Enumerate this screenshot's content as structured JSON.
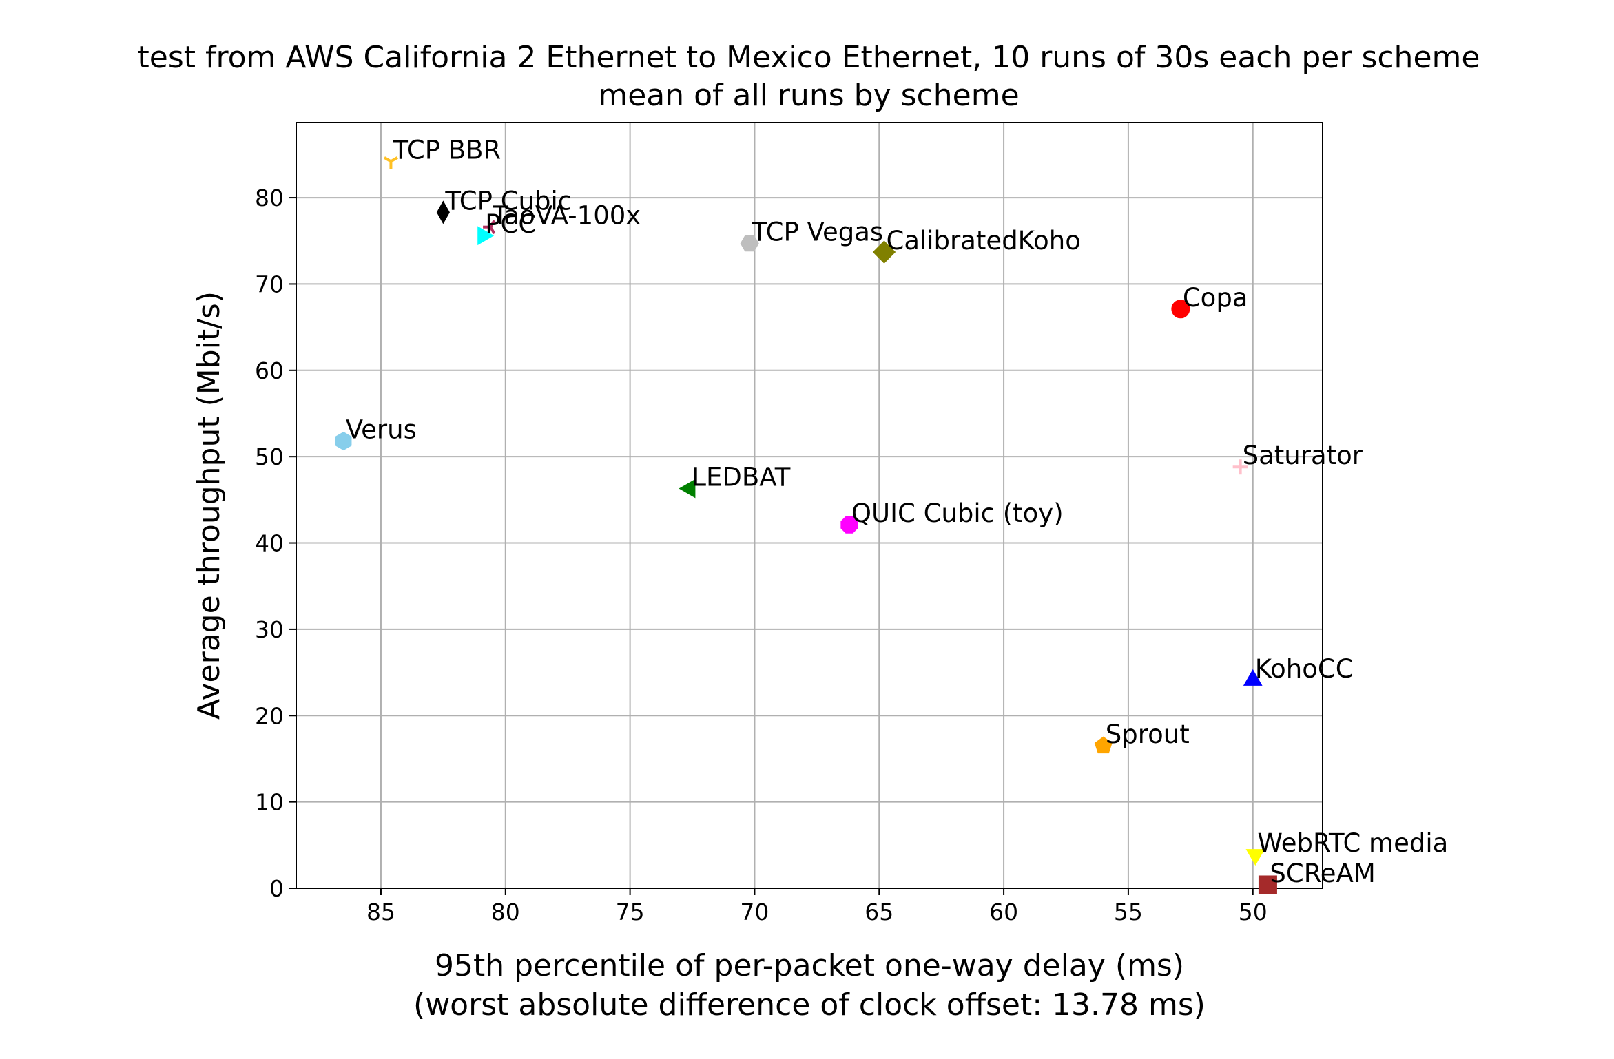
{
  "chart_data": {
    "type": "scatter",
    "title": "test from AWS California 2 Ethernet to Mexico Ethernet, 10 runs of 30s each per scheme",
    "subtitle": "mean of all runs by scheme",
    "xlabel": "95th percentile of per-packet one-way delay (ms)",
    "xlabel2": "(worst absolute difference of clock offset: 13.78 ms)",
    "ylabel": "Average throughput (Mbit/s)",
    "x_inverted": true,
    "xlim": [
      88.4,
      47.2
    ],
    "ylim": [
      0,
      88.7
    ],
    "xticks": [
      85,
      80,
      75,
      70,
      65,
      60,
      55,
      50
    ],
    "yticks": [
      0,
      10,
      20,
      30,
      40,
      50,
      60,
      70,
      80
    ],
    "grid": true,
    "points": [
      {
        "name": "TCP BBR",
        "x": 84.6,
        "y": 84.2,
        "marker": "tri-down",
        "color": "#FFC125"
      },
      {
        "name": "TCP Cubic",
        "x": 82.5,
        "y": 78.3,
        "marker": "thin-diamond",
        "color": "#000000"
      },
      {
        "name": "TaoVA-100x",
        "x": 80.6,
        "y": 76.6,
        "marker": "tri-left",
        "color": "#B03060"
      },
      {
        "name": "PCC",
        "x": 80.9,
        "y": 75.6,
        "marker": "triangle-right",
        "color": "#00FFFF"
      },
      {
        "name": "TCP Vegas",
        "x": 70.2,
        "y": 74.7,
        "marker": "hexagon2",
        "color": "#BEBEBE"
      },
      {
        "name": "CalibratedKoho",
        "x": 64.8,
        "y": 73.7,
        "marker": "diamond",
        "color": "#808000"
      },
      {
        "name": "Copa",
        "x": 52.9,
        "y": 67.1,
        "marker": "circle",
        "color": "#FF0000"
      },
      {
        "name": "Verus",
        "x": 86.5,
        "y": 51.8,
        "marker": "hexagon",
        "color": "#87CEEB"
      },
      {
        "name": "Saturator",
        "x": 50.5,
        "y": 48.8,
        "marker": "plus",
        "color": "#FFC0CB"
      },
      {
        "name": "LEDBAT",
        "x": 72.6,
        "y": 46.3,
        "marker": "triangle-left",
        "color": "#008000"
      },
      {
        "name": "QUIC Cubic (toy)",
        "x": 66.2,
        "y": 42.1,
        "marker": "octagon",
        "color": "#FF00FF"
      },
      {
        "name": "KohoCC",
        "x": 50.0,
        "y": 24.1,
        "marker": "triangle-up",
        "color": "#0000FF"
      },
      {
        "name": "Sprout",
        "x": 56.0,
        "y": 16.5,
        "marker": "pentagon",
        "color": "#FFA500"
      },
      {
        "name": "WebRTC media",
        "x": 49.9,
        "y": 3.9,
        "marker": "triangle-down",
        "color": "#FFFF00"
      },
      {
        "name": "SCReAM",
        "x": 49.4,
        "y": 0.4,
        "marker": "square",
        "color": "#A52A2A"
      }
    ]
  }
}
